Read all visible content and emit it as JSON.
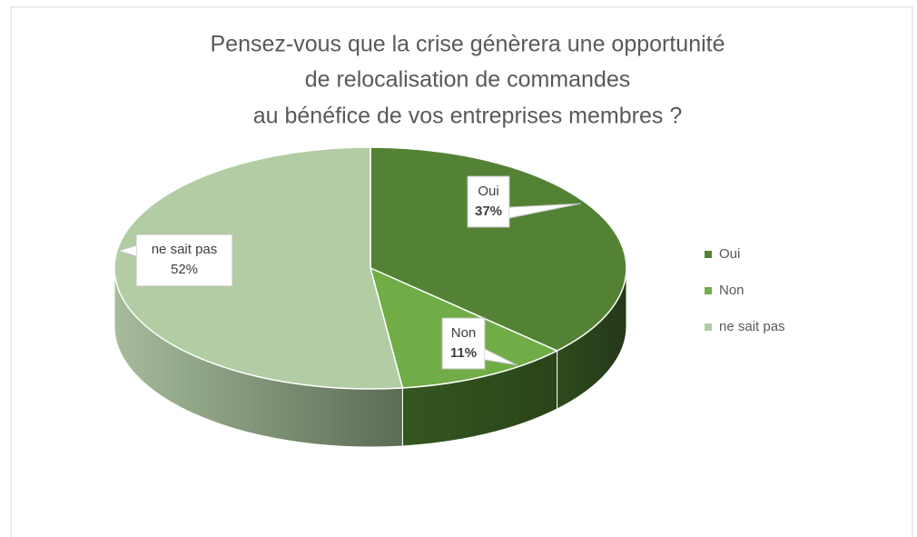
{
  "chart_data": {
    "type": "pie3d",
    "title": [
      "Pensez-vous que la crise génèrera une opportunité",
      "de relocalisation de commandes",
      "au bénéfice de vos entreprises membres ?"
    ],
    "categories": [
      "Oui",
      "Non",
      "ne sait pas"
    ],
    "values": [
      37,
      11,
      52
    ],
    "value_labels": [
      "37%",
      "11%",
      "52%"
    ],
    "colors": [
      "#548235",
      "#70ad47",
      "#b2cca3"
    ],
    "legend": "right"
  }
}
